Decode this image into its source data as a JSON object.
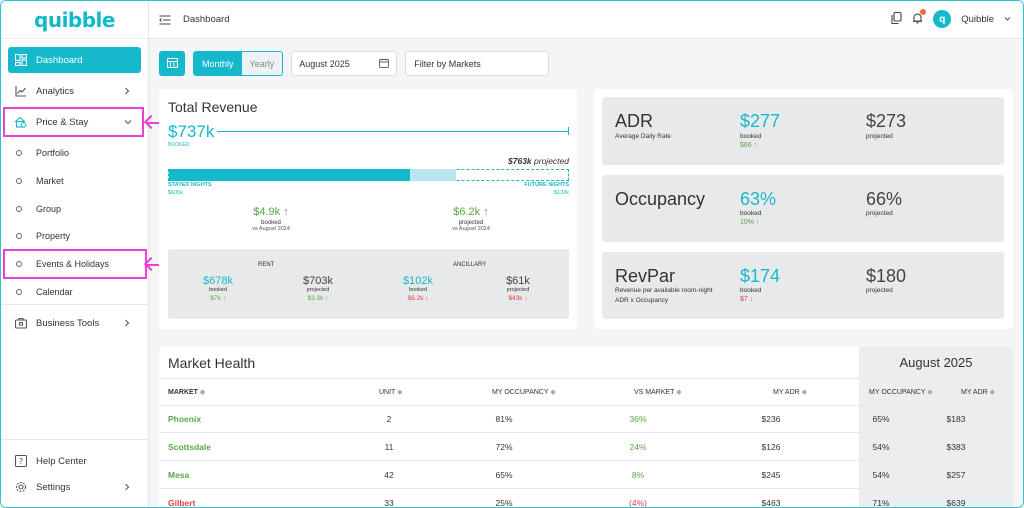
{
  "app": {
    "logo": "quibble"
  },
  "header": {
    "title": "Dashboard",
    "user": "Quibble",
    "avatar_letter": "q"
  },
  "sidebar": {
    "items": [
      {
        "label": "Dashboard",
        "icon": "dashboard-icon"
      },
      {
        "label": "Analytics",
        "icon": "analytics-icon"
      },
      {
        "label": "Price & Stay",
        "icon": "price-stay-icon"
      }
    ],
    "sub_items": [
      "Portfolio",
      "Market",
      "Group",
      "Property",
      "Events & Holidays",
      "Calendar"
    ],
    "business_tools": "Business Tools",
    "help": "Help Center",
    "settings": "Settings"
  },
  "toolbar": {
    "monthly": "Monthly",
    "yearly": "Yearly",
    "date": "August 2025",
    "filter_placeholder": "Filter by Markets"
  },
  "revenue": {
    "title": "Total Revenue",
    "total": "$737k",
    "total_label": "BOOKED",
    "projected": "$763k",
    "projected_suffix": " projected",
    "stayed_label": "STAYED NIGHTS",
    "stayed_value": "$605k",
    "future_label": "FUTURE NIGHTS",
    "future_value": "$133k",
    "booked_delta": "$4.9k",
    "booked_label": "booked",
    "booked_vs": "vs August 2024",
    "projected_delta": "$6.2k",
    "projected_label": "projected",
    "projected_vs": "vs August 2024",
    "progress": {
      "stayed_fraction": 0.6,
      "future_fraction": 0.115
    },
    "rent_label": "RENT",
    "ancillary_label": "ANCILLARY",
    "rent_booked": "$678k",
    "rent_booked_delta": "$7k",
    "rent_projected": "$703k",
    "rent_projected_delta": "$3.3k",
    "anc_booked": "$102k",
    "anc_booked_delta": "$6.2k",
    "anc_projected": "$61k",
    "anc_projected_delta": "$43k",
    "lbl_booked": "booked",
    "lbl_projected": "projected"
  },
  "kpis": [
    {
      "name": "ADR",
      "sub": "Average Daily Rate",
      "sub2": "",
      "booked": "$277",
      "delta": "$66",
      "dir": "up",
      "projected": "$273"
    },
    {
      "name": "Occupancy",
      "sub": "",
      "sub2": "",
      "booked": "63%",
      "delta": "10%",
      "dir": "up",
      "projected": "66%"
    },
    {
      "name": "RevPar",
      "sub": "Revenue per available room-night",
      "sub2": "ADR x Occupancy",
      "booked": "$174",
      "delta": "$7",
      "dir": "down",
      "projected": "$180"
    }
  ],
  "kpi_labels": {
    "booked": "booked",
    "projected": "projected"
  },
  "market": {
    "title": "Market Health",
    "period": "August 2025",
    "columns": [
      "MARKET",
      "UNIT",
      "MY OCCUPANCY",
      "VS MARKET",
      "MY ADR",
      "MY OCCUPANCY",
      "MY ADR"
    ],
    "rows": [
      {
        "market": "Phoenix",
        "unit": "2",
        "occ": "81%",
        "vs": "36%",
        "adr": "$236",
        "m_occ": "65%",
        "m_adr": "$183",
        "status": "up"
      },
      {
        "market": "Scottsdale",
        "unit": "11",
        "occ": "72%",
        "vs": "24%",
        "adr": "$126",
        "m_occ": "54%",
        "m_adr": "$383",
        "status": "up"
      },
      {
        "market": "Mesa",
        "unit": "42",
        "occ": "65%",
        "vs": "8%",
        "adr": "$245",
        "m_occ": "54%",
        "m_adr": "$257",
        "status": "up"
      },
      {
        "market": "Gilbert",
        "unit": "33",
        "occ": "25%",
        "vs": "(4%)",
        "adr": "$463",
        "m_occ": "71%",
        "m_adr": "$639",
        "status": "down"
      }
    ]
  },
  "colors": {
    "accent": "#16b9cb",
    "highlight": "#ec3fd6",
    "positive": "#5aa845",
    "negative": "#e4433b"
  }
}
